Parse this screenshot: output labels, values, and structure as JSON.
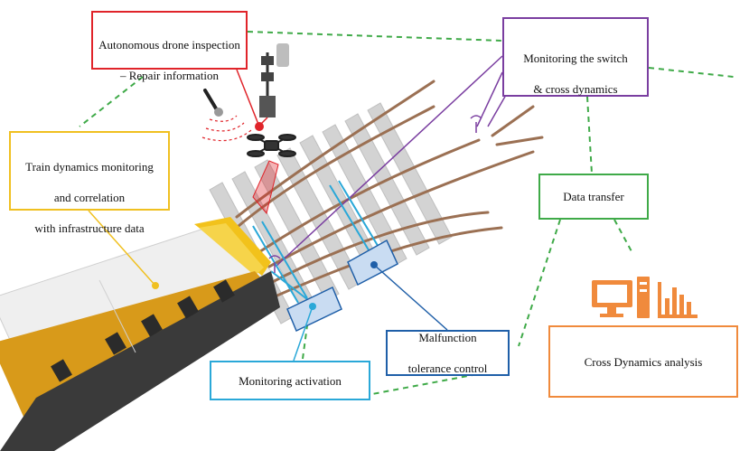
{
  "boxes": {
    "drone": {
      "line1": "Autonomous drone inspection",
      "line2": "– Repair information"
    },
    "switch": {
      "line1": "Monitoring the switch",
      "line2": "& cross dynamics"
    },
    "train": {
      "line1": "Train dynamics monitoring",
      "line2": "and correlation",
      "line3": "with infrastructure data"
    },
    "transfer": {
      "label": "Data transfer"
    },
    "malfunction": {
      "line1": "Malfunction",
      "line2": "tolerance control"
    },
    "activation": {
      "label": "Monitoring activation"
    },
    "cross": {
      "label": "Cross Dynamics analysis"
    }
  },
  "colors": {
    "drone": "#e0242a",
    "switch": "#7a3ea0",
    "train": "#f0c020",
    "transfer": "#3faa48",
    "malfunction": "#1f5fa8",
    "activation": "#2aa8d8",
    "cross": "#f08a3c",
    "rail": "#9b7053",
    "sleeper": "#d3d3d3"
  },
  "icons": [
    "drone-icon",
    "microphone-icon",
    "camera-mast-icon",
    "antenna-icon",
    "computer-icon",
    "bar-chart-icon",
    "sensor-icon"
  ]
}
